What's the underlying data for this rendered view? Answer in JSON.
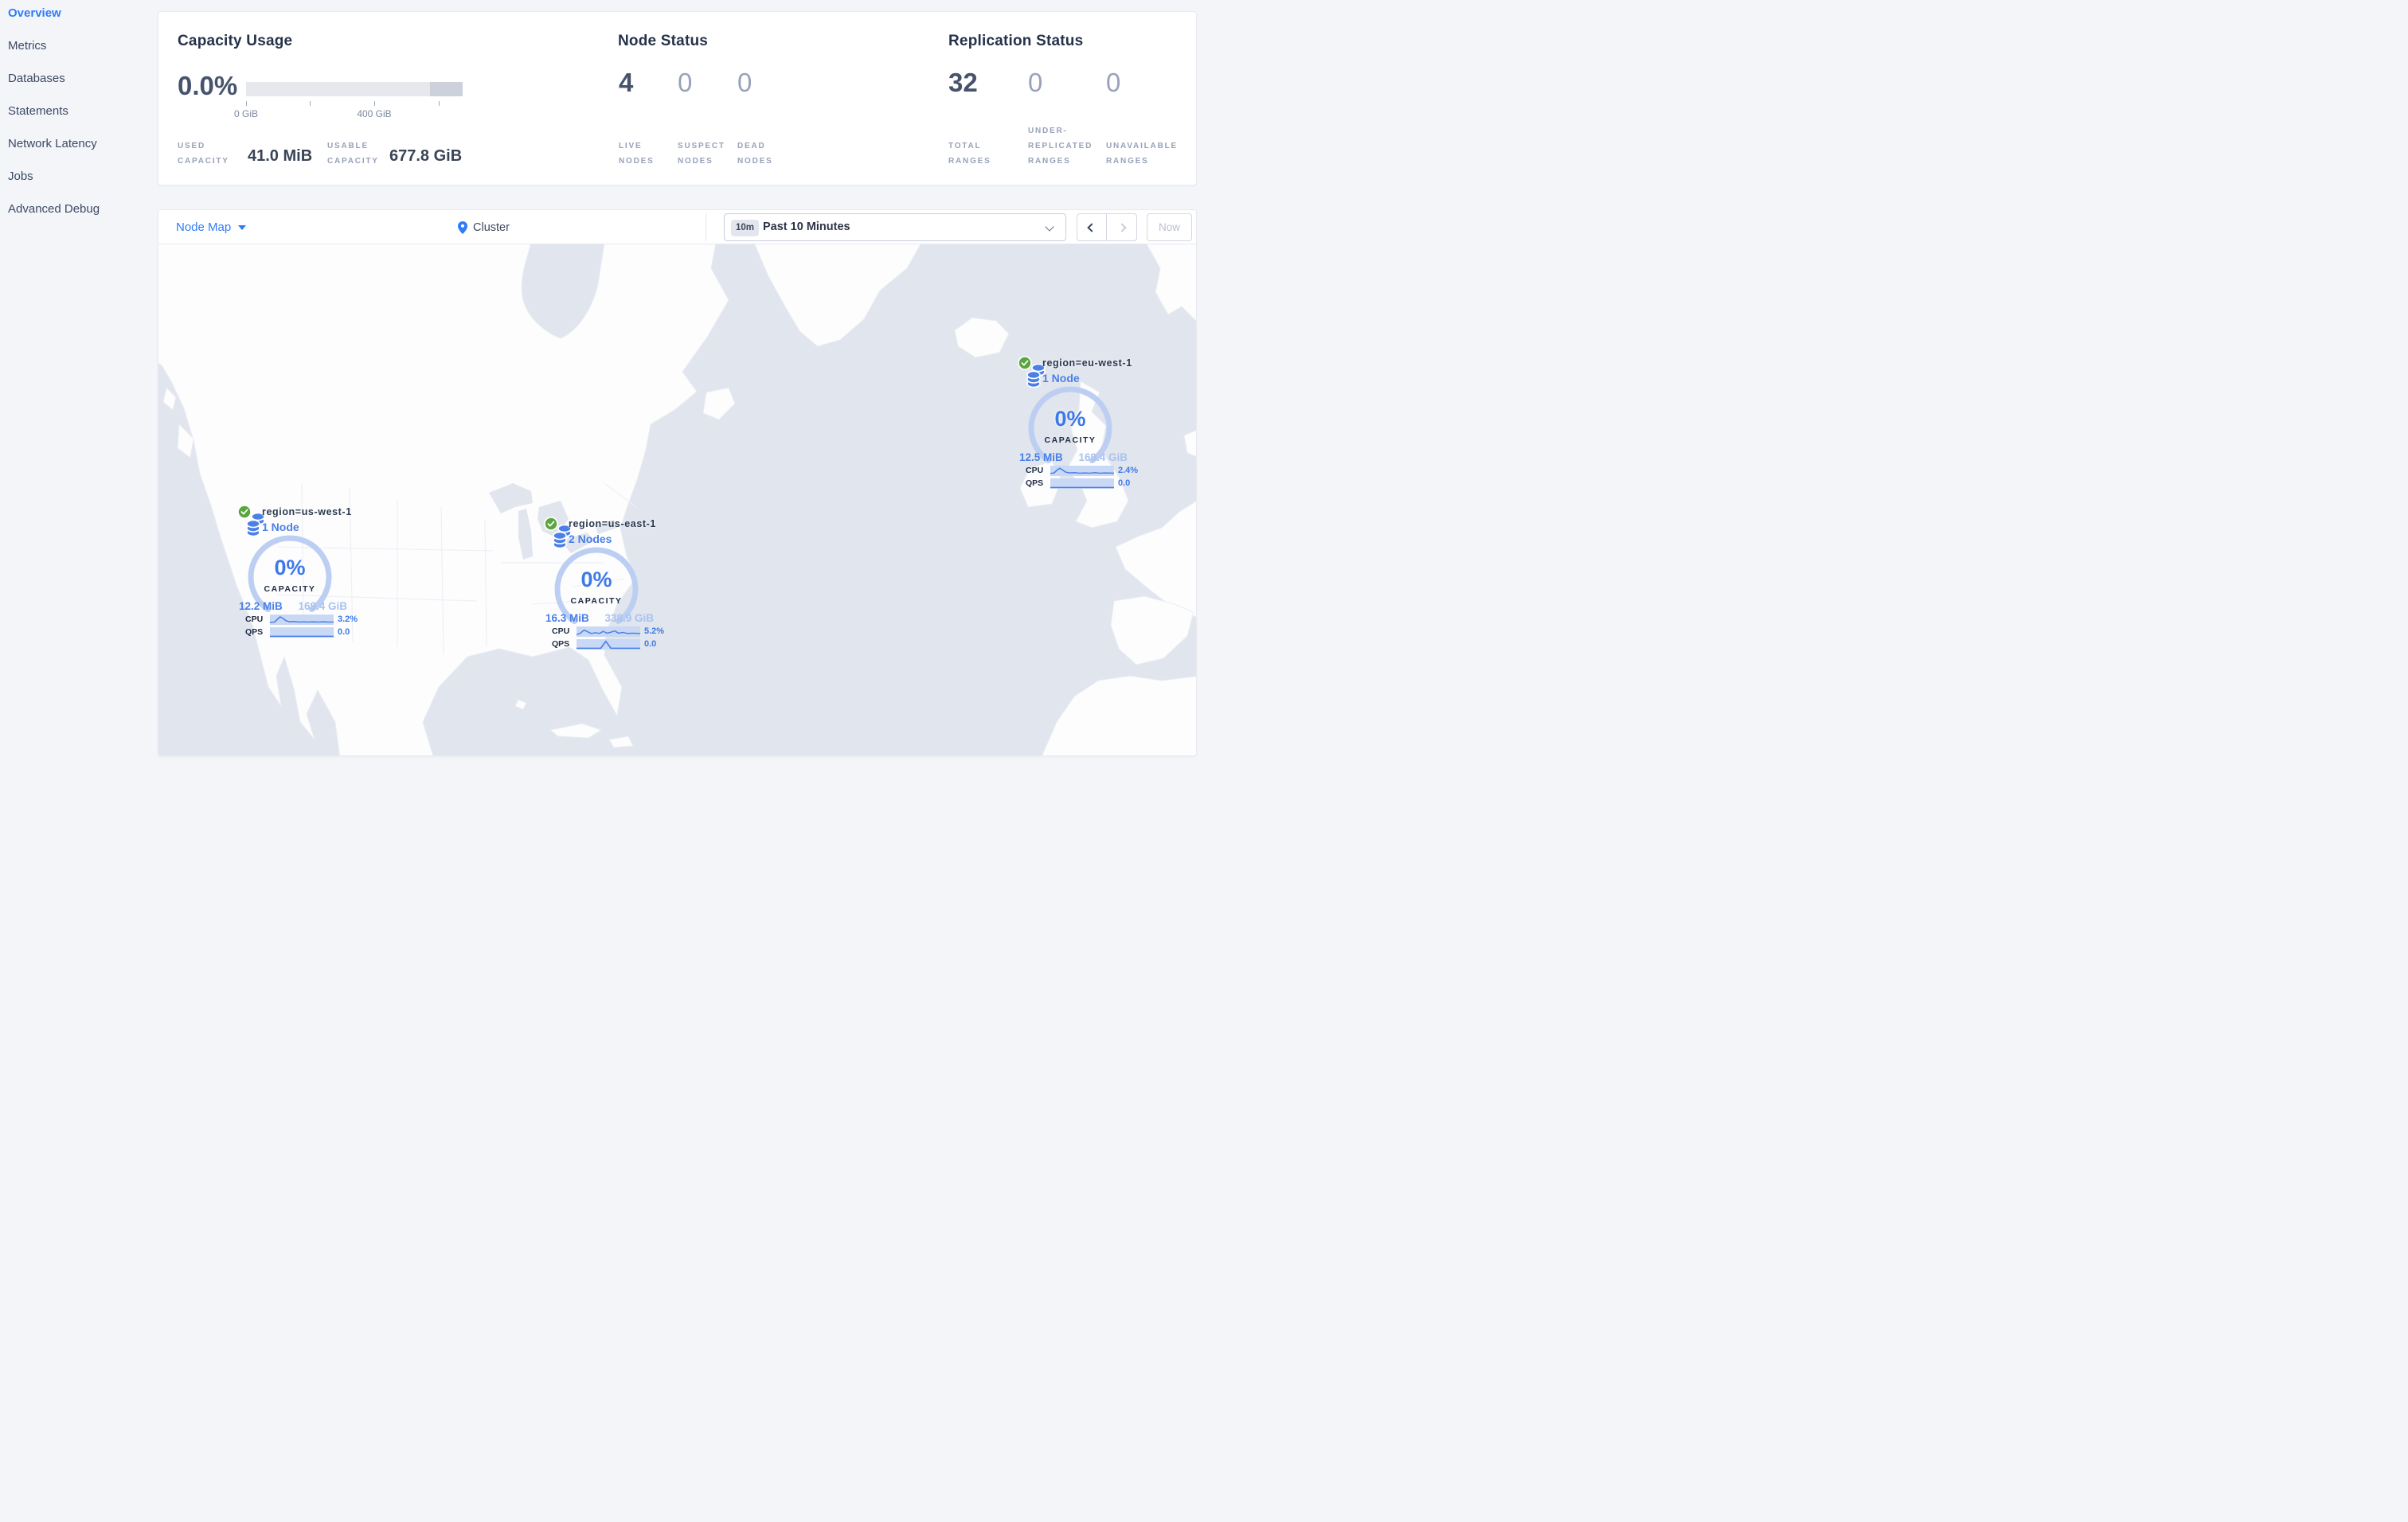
{
  "colors": {
    "accent_blue": "#2f7cf6",
    "marker_blue": "#4a80e8",
    "gauge_arc": "#bccff2",
    "light_blue_value": "#a9c3ef",
    "dark_text": "#394455",
    "muted_label": "#97a1b8",
    "ocean": "#e1e5ee",
    "land": "#fdfdfe",
    "status_green": "#5ba53f"
  },
  "sidebar": {
    "items": [
      {
        "label": "Overview",
        "active": true
      },
      {
        "label": "Metrics",
        "active": false
      },
      {
        "label": "Databases",
        "active": false
      },
      {
        "label": "Statements",
        "active": false
      },
      {
        "label": "Network Latency",
        "active": false
      },
      {
        "label": "Jobs",
        "active": false
      },
      {
        "label": "Advanced Debug",
        "active": false
      }
    ]
  },
  "stats_card": {
    "capacity": {
      "title": "Capacity Usage",
      "percent": "0.0%",
      "tick_label_0": "0 GiB",
      "tick_label_400": "400 GiB",
      "used_label": "USED CAPACITY",
      "used_value": "41.0 MiB",
      "usable_label": "USABLE CAPACITY",
      "usable_value": "677.8 GiB"
    },
    "nodes": {
      "title": "Node Status",
      "live_value": "4",
      "live_label": "LIVE NODES",
      "suspect_value": "0",
      "suspect_label": "SUSPECT NODES",
      "dead_value": "0",
      "dead_label": "DEAD NODES"
    },
    "replication": {
      "title": "Replication Status",
      "total_value": "32",
      "total_label": "TOTAL RANGES",
      "under_value": "0",
      "under_label": "UNDER-REPLICATED RANGES",
      "unavailable_value": "0",
      "unavailable_label": "UNAVAILABLE RANGES"
    }
  },
  "toolbar": {
    "view_selector": "Node Map",
    "breadcrumb": "Cluster",
    "time_badge": "10m",
    "time_range": "Past 10 Minutes",
    "now_label": "Now"
  },
  "map": {
    "markers": [
      {
        "region": "region=us-west-1",
        "nodes": "1 Node",
        "capacity_percent": "0%",
        "capacity_label": "CAPACITY",
        "used": "12.2 MiB",
        "total": "169.4 GiB",
        "cpu_label": "CPU",
        "cpu_value": "3.2%",
        "qps_label": "QPS",
        "qps_value": "0.0",
        "cpu_spark": "0,15 7,14.5 12,9 16,4.5 20,7 25,12 31,14 38,13.5 45,14.5 52,14 60,14.5 68,14 76,14.5 84,14 92,14.5 100,14.5",
        "qps_spark": "0,17.5 100,17.5"
      },
      {
        "region": "region=us-east-1",
        "nodes": "2 Nodes",
        "capacity_percent": "0%",
        "capacity_label": "CAPACITY",
        "used": "16.3 MiB",
        "total": "338.9 GiB",
        "cpu_label": "CPU",
        "cpu_value": "5.2%",
        "qps_label": "QPS",
        "qps_value": "0.0",
        "cpu_spark": "0,16 6,13 12,7 17,10 23,13.5 30,12 36,13.5 42,9.5 48,13 54,11 60,8.5 66,13 73,11.5 80,13.5 88,13 100,13.5",
        "qps_spark": "0,17.5 38,17.5 46,4 54,17.5 100,17.5"
      },
      {
        "region": "region=eu-west-1",
        "nodes": "1 Node",
        "capacity_percent": "0%",
        "capacity_label": "CAPACITY",
        "used": "12.5 MiB",
        "total": "169.4 GiB",
        "cpu_label": "CPU",
        "cpu_value": "2.4%",
        "qps_label": "QPS",
        "qps_value": "0.0",
        "cpu_spark": "0,15 6,14 11,8 15,5 19,8 24,12.5 30,14 38,13.5 46,14.5 54,14 62,14.5 70,13.5 78,14.5 86,14 100,14.5",
        "qps_spark": "0,17.5 100,17.5"
      }
    ]
  }
}
